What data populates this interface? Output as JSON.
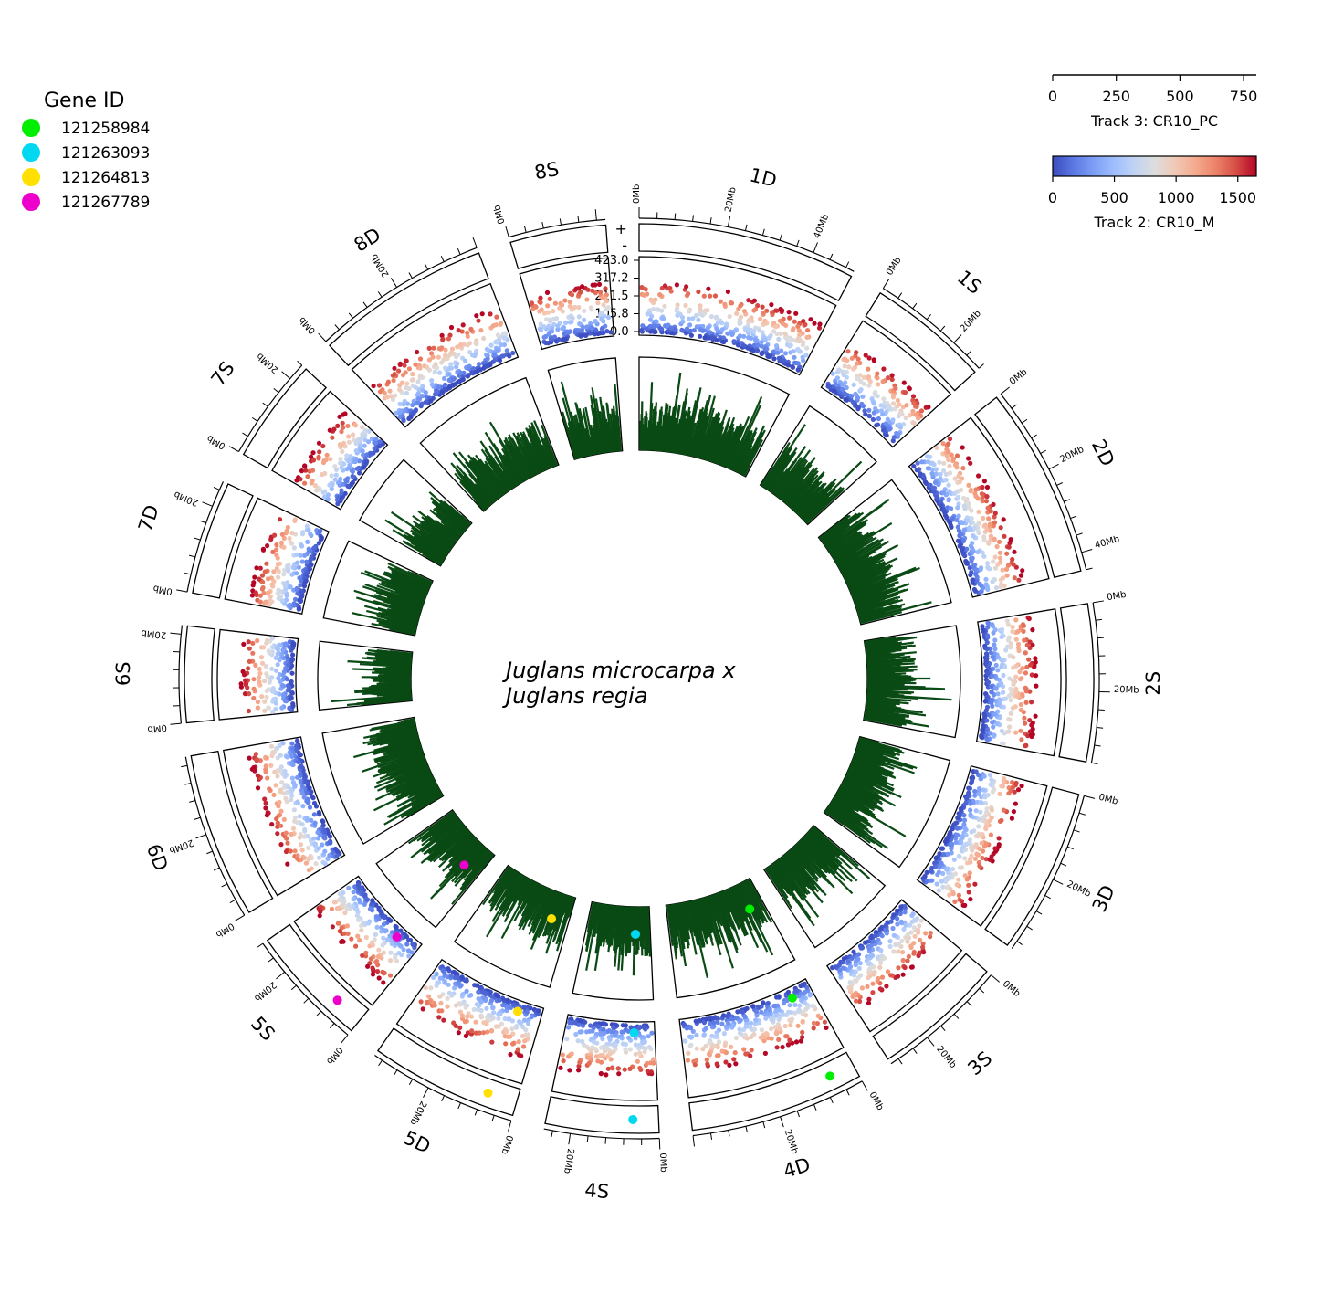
{
  "chart_data": {
    "type": "circos",
    "title": "Juglans microcarpa x Juglans regia",
    "legend": {
      "title": "Gene ID",
      "placement": "top-left",
      "items": [
        {
          "label": "121258984",
          "color": "#00ee00"
        },
        {
          "label": "121263093",
          "color": "#00d8f0"
        },
        {
          "label": "121264813",
          "color": "#ffe000"
        },
        {
          "label": "121267789",
          "color": "#ee00cc"
        }
      ]
    },
    "colorbars": [
      {
        "label": "Track 3: CR10_PC",
        "ticks": [
          "0",
          "250",
          "500",
          "750"
        ],
        "range": [
          0,
          800
        ],
        "style": "axis"
      },
      {
        "label": "Track 2: CR10_M",
        "ticks": [
          "0",
          "500",
          "1000",
          "1500"
        ],
        "range": [
          0,
          1650
        ],
        "colormap": "coolwarm"
      }
    ],
    "scatter_track": {
      "yticks": [
        "423.0",
        "317.2",
        "211.5",
        "105.8",
        "0.0"
      ],
      "max": 423.0
    },
    "strand_labels": [
      "+",
      "-"
    ],
    "chromosomes": [
      {
        "name": "1D",
        "length_mb": 50,
        "marks": [
          "0Mb",
          "20Mb",
          "40Mb"
        ]
      },
      {
        "name": "1S",
        "length_mb": 28,
        "marks": [
          "0Mb",
          "20Mb"
        ]
      },
      {
        "name": "2D",
        "length_mb": 44,
        "marks": [
          "0Mb",
          "20Mb",
          "40Mb"
        ]
      },
      {
        "name": "2S",
        "length_mb": 36,
        "marks": [
          "0Mb",
          "20Mb"
        ]
      },
      {
        "name": "3D",
        "length_mb": 38,
        "marks": [
          "0Mb",
          "20Mb"
        ]
      },
      {
        "name": "3S",
        "length_mb": 30,
        "marks": [
          "0Mb",
          "20Mb"
        ]
      },
      {
        "name": "4D",
        "length_mb": 40,
        "marks": [
          "0Mb",
          "20Mb"
        ]
      },
      {
        "name": "4S",
        "length_mb": 26,
        "marks": [
          "0Mb",
          "20Mb"
        ]
      },
      {
        "name": "5D",
        "length_mb": 34,
        "marks": [
          "0Mb",
          "20Mb"
        ]
      },
      {
        "name": "5S",
        "length_mb": 28,
        "marks": [
          "0Mb",
          "20Mb"
        ]
      },
      {
        "name": "6D",
        "length_mb": 38,
        "marks": [
          "0Mb",
          "20Mb"
        ]
      },
      {
        "name": "6S",
        "length_mb": 22,
        "marks": [
          "0Mb",
          "20Mb"
        ]
      },
      {
        "name": "7D",
        "length_mb": 26,
        "marks": [
          "0Mb",
          "20Mb"
        ]
      },
      {
        "name": "7S",
        "length_mb": 24,
        "marks": [
          "0Mb",
          "20Mb"
        ]
      },
      {
        "name": "8D",
        "length_mb": 40,
        "marks": [
          "0Mb",
          "20Mb"
        ]
      },
      {
        "name": "8S",
        "length_mb": 22,
        "marks": [
          "0Mb"
        ]
      }
    ],
    "gene_highlights": [
      {
        "gene": "121258984",
        "chrom": "4D",
        "pos_mb": 6
      },
      {
        "gene": "121263093",
        "chrom": "4S",
        "pos_mb": 6
      },
      {
        "gene": "121264813",
        "chrom": "5D",
        "pos_mb": 7
      },
      {
        "gene": "121267789",
        "chrom": "5S",
        "pos_mb": 7
      }
    ],
    "histogram_track": {
      "color": "#0a4a14"
    }
  }
}
